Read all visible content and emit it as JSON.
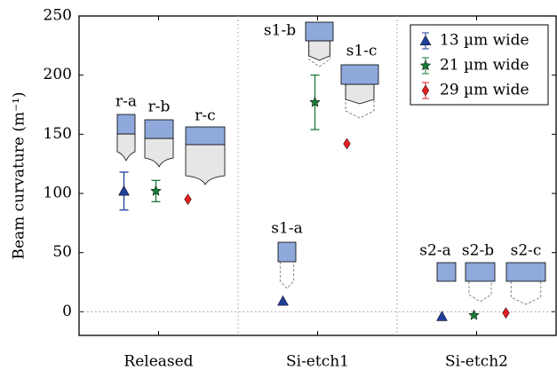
{
  "chart_data": {
    "type": "scatter",
    "y_label": "Beam curvature (m⁻¹)",
    "categories": [
      "Released",
      "Si-etch1",
      "Si-etch2"
    ],
    "ylim": [
      -20,
      250
    ],
    "yticks": [
      0,
      50,
      100,
      150,
      200,
      250
    ],
    "legend_position": "upper right",
    "series": [
      {
        "name": "13 µm wide",
        "color": "#1f3f99",
        "marker": "triangle",
        "values": [
          102,
          9,
          -4
        ],
        "errors": [
          16,
          null,
          null
        ]
      },
      {
        "name": "21 µm wide",
        "color": "#1b7a3a",
        "marker": "star",
        "values": [
          102,
          177,
          -3
        ],
        "errors": [
          9,
          23,
          null
        ]
      },
      {
        "name": "29 µm wide",
        "color": "#e02020",
        "marker": "diamond",
        "values": [
          95,
          142,
          -1
        ],
        "errors": [
          null,
          null,
          null
        ]
      }
    ],
    "annotations": [
      "r-a",
      "r-b",
      "r-c",
      "s1-a",
      "s1-b",
      "s1-c",
      "s2-a",
      "s2-b",
      "s2-c"
    ]
  }
}
